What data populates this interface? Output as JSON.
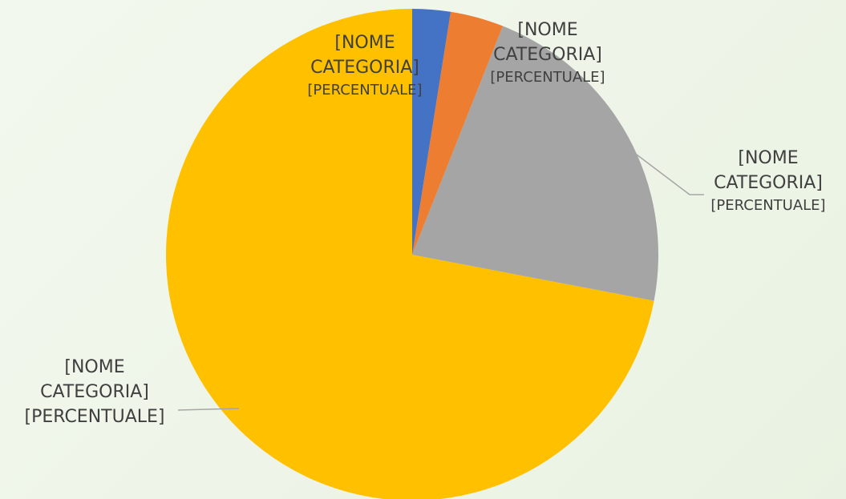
{
  "chart_data": {
    "type": "pie",
    "categories": [
      "[NOME CATEGORIA]",
      "[NOME CATEGORIA]",
      "[NOME CATEGORIA]",
      "[NOME CATEGORIA]"
    ],
    "values": [
      2.5,
      3.5,
      22,
      72
    ],
    "data_labels": [
      "[PERCENTUALE]",
      "[PERCENTUALE]",
      "[PERCENTUALE]",
      "[PERCENTUALE]"
    ],
    "colors": [
      "#4472c4",
      "#ed7d31",
      "#a5a5a5",
      "#ffc000"
    ]
  }
}
